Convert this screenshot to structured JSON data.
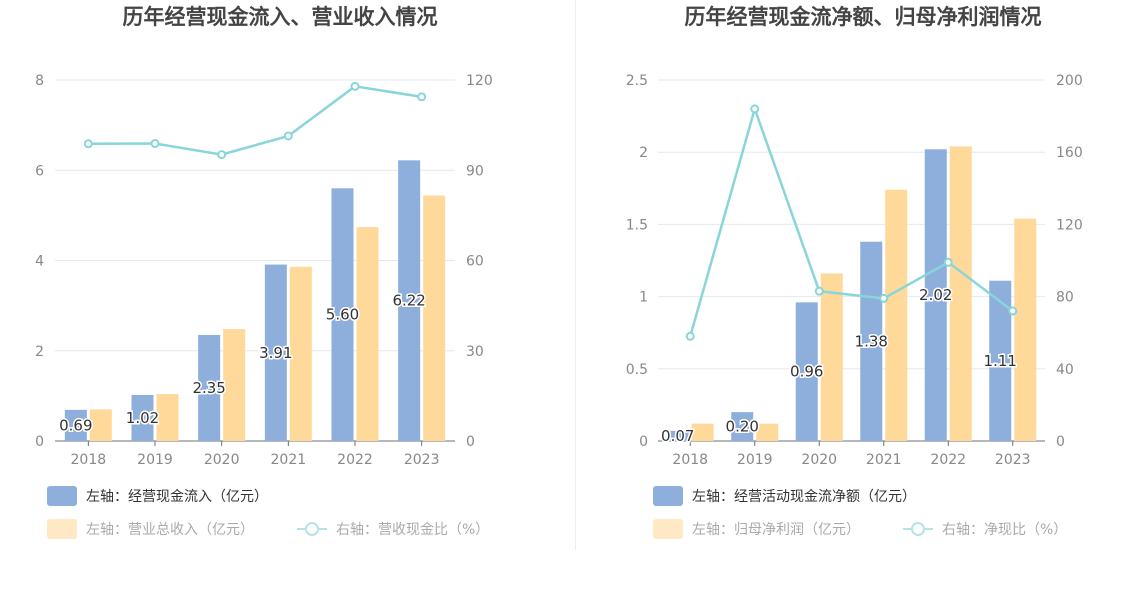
{
  "chart_data": [
    {
      "type": "bar",
      "title": "历年经营现金流入、营业收入情况",
      "categories": [
        "2018",
        "2019",
        "2020",
        "2021",
        "2022",
        "2023"
      ],
      "left_axis": {
        "ylim": [
          0,
          8
        ],
        "ticks": [
          "0",
          "2",
          "4",
          "6",
          "8"
        ]
      },
      "right_axis": {
        "ylim": [
          0,
          120
        ],
        "ticks": [
          "0",
          "30",
          "60",
          "90",
          "120"
        ]
      },
      "series": [
        {
          "name": "左轴：经营现金流入（亿元）",
          "type": "bar",
          "axis": "left",
          "color": "#8eaedc",
          "values": [
            0.69,
            1.02,
            2.35,
            3.91,
            5.6,
            6.22
          ],
          "labels": [
            "0.69",
            "1.02",
            "2.35",
            "3.91",
            "5.60",
            "6.22"
          ]
        },
        {
          "name": "左轴：营业总收入（亿元）",
          "type": "bar",
          "axis": "left",
          "color": "#ffd99a",
          "values": [
            0.7,
            1.04,
            2.48,
            3.86,
            4.74,
            5.44
          ]
        },
        {
          "name": "右轴：营收现金比（%）",
          "type": "line",
          "axis": "right",
          "color": "#88d5da",
          "values": [
            98.8,
            98.9,
            95.2,
            101.4,
            117.9,
            114.4
          ]
        }
      ],
      "legend_position": "bottom-left",
      "grid": true
    },
    {
      "type": "bar",
      "title": "历年经营现金流净额、归母净利润情况",
      "categories": [
        "2018",
        "2019",
        "2020",
        "2021",
        "2022",
        "2023"
      ],
      "left_axis": {
        "ylim": [
          0,
          2.5
        ],
        "ticks": [
          "0",
          "0.5",
          "1",
          "1.5",
          "2",
          "2.5"
        ]
      },
      "right_axis": {
        "ylim": [
          0,
          200
        ],
        "ticks": [
          "0",
          "40",
          "80",
          "120",
          "160",
          "200"
        ]
      },
      "series": [
        {
          "name": "左轴：经营活动现金流净额（亿元）",
          "type": "bar",
          "axis": "left",
          "color": "#8eaedc",
          "values": [
            0.07,
            0.2,
            0.96,
            1.38,
            2.02,
            1.11
          ],
          "labels": [
            "0.07",
            "0.20",
            "0.96",
            "1.38",
            "2.02",
            "1.11"
          ]
        },
        {
          "name": "左轴：归母净利润（亿元）",
          "type": "bar",
          "axis": "left",
          "color": "#ffd99a",
          "values": [
            0.12,
            0.12,
            1.16,
            1.74,
            2.04,
            1.54
          ]
        },
        {
          "name": "右轴：净现比（%）",
          "type": "line",
          "axis": "right",
          "color": "#88d5da",
          "values": [
            58,
            184,
            83,
            79,
            99,
            72
          ]
        }
      ],
      "legend_position": "bottom-left",
      "grid": true
    }
  ]
}
